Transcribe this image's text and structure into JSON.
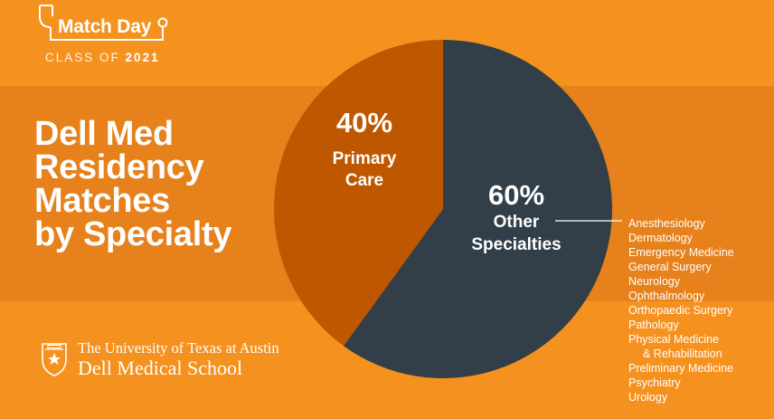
{
  "branding": {
    "event_title": "Match Day",
    "class_prefix": "CLASS OF",
    "class_year": "2021"
  },
  "headline": {
    "lines": [
      "Dell Med",
      "Residency",
      "Matches",
      "by Specialty"
    ]
  },
  "chart_data": {
    "type": "pie",
    "slices": [
      {
        "label_lines": [
          "Primary",
          "Care"
        ],
        "value": 40,
        "value_label": "40%",
        "color": "#bf5700"
      },
      {
        "label_lines": [
          "Other",
          "Specialties"
        ],
        "value": 60,
        "value_label": "60%",
        "color": "#333f48"
      }
    ]
  },
  "other_specialties_list": [
    "Anesthesiology",
    "Dermatology",
    "Emergency Medicine",
    "General Surgery",
    "Neurology",
    "Ophthalmology",
    "Orthopaedic Surgery",
    "Pathology",
    "Physical Medicine",
    "& Rehabilitation",
    "Preliminary Medicine",
    "Psychiatry",
    "Urology"
  ],
  "institution": {
    "line1": "The University of Texas at Austin",
    "line2": "Dell Medical School"
  },
  "colors": {
    "background": "#f5921f",
    "band": "#e6811b",
    "primary_care": "#bf5700",
    "other_specialties": "#333f48"
  }
}
